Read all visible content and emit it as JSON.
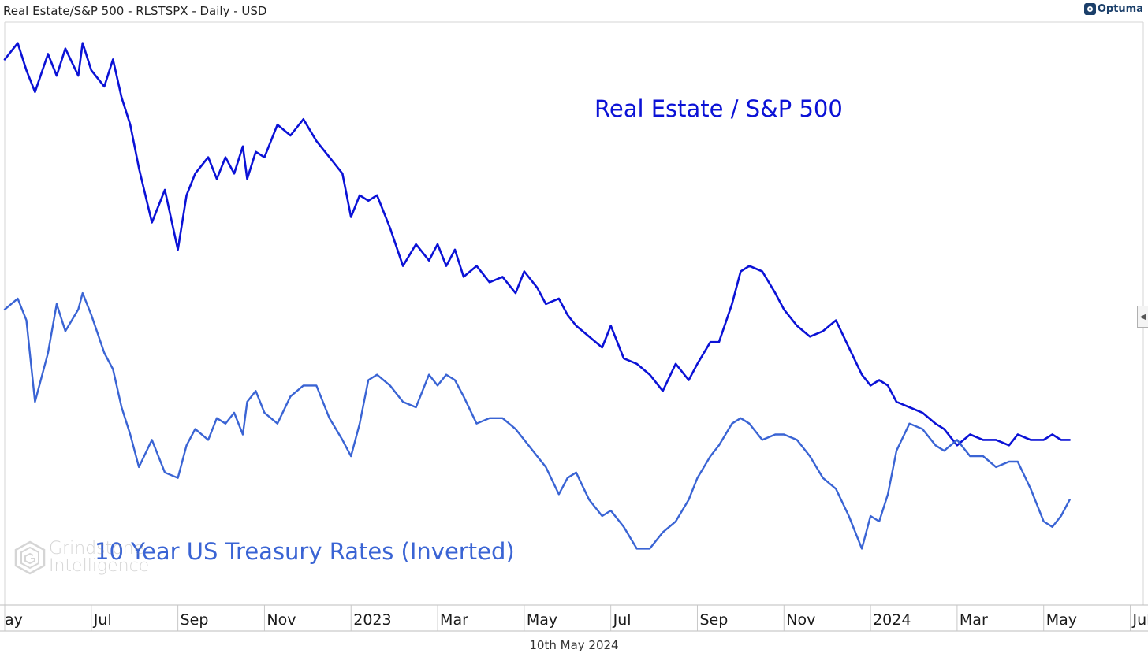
{
  "header": {
    "title": "Real Estate/S&P 500 - RLSTSPX - Daily - USD",
    "logo_text": "Optuma"
  },
  "footer": {
    "date": "10th May 2024"
  },
  "watermark": {
    "line1": "Grindstone",
    "line2": "Intelligence"
  },
  "colors": {
    "series_ratio": "#0b12d6",
    "series_rates": "#3a64d4",
    "axis": "#c8c8c8",
    "background": "#ffffff"
  },
  "chart_data": {
    "type": "line",
    "title": "Real Estate/S&P 500 - RLSTSPX - Daily - USD",
    "x_unit": "months since May 2022",
    "y_unit": "normalized index (0-100, relative scale, no y-axis shown)",
    "xlim": [
      0,
      26.3
    ],
    "ylim": [
      0,
      100
    ],
    "x_tick_labels": [
      {
        "label": "ay",
        "x": 0
      },
      {
        "label": "Jul",
        "x": 2
      },
      {
        "label": "Sep",
        "x": 4
      },
      {
        "label": "Nov",
        "x": 6
      },
      {
        "label": "2023",
        "x": 8
      },
      {
        "label": "Mar",
        "x": 10
      },
      {
        "label": "May",
        "x": 12
      },
      {
        "label": "Jul",
        "x": 14
      },
      {
        "label": "Sep",
        "x": 16
      },
      {
        "label": "Nov",
        "x": 18
      },
      {
        "label": "2024",
        "x": 20
      },
      {
        "label": "Mar",
        "x": 22
      },
      {
        "label": "May",
        "x": 24
      },
      {
        "label": "Jul",
        "x": 26
      }
    ],
    "series": [
      {
        "name": "Real Estate / S&P 500",
        "label_text": "Real Estate / S&P 500",
        "color": "#0b12d6",
        "x": [
          0,
          0.3,
          0.5,
          0.7,
          1.0,
          1.2,
          1.4,
          1.7,
          1.8,
          2.0,
          2.3,
          2.5,
          2.7,
          2.9,
          3.1,
          3.4,
          3.7,
          4.0,
          4.2,
          4.4,
          4.7,
          4.9,
          5.1,
          5.3,
          5.5,
          5.6,
          5.8,
          6.0,
          6.3,
          6.6,
          6.9,
          7.2,
          7.5,
          7.8,
          8.0,
          8.2,
          8.4,
          8.6,
          8.9,
          9.2,
          9.5,
          9.8,
          10.0,
          10.2,
          10.4,
          10.6,
          10.9,
          11.2,
          11.5,
          11.8,
          12.0,
          12.3,
          12.5,
          12.8,
          13.0,
          13.2,
          13.5,
          13.8,
          14.0,
          14.3,
          14.6,
          14.9,
          15.2,
          15.5,
          15.8,
          16.0,
          16.3,
          16.5,
          16.8,
          17.0,
          17.2,
          17.5,
          17.8,
          18.0,
          18.3,
          18.6,
          18.9,
          19.2,
          19.5,
          19.8,
          20.0,
          20.2,
          20.4,
          20.6,
          20.9,
          21.2,
          21.5,
          21.7,
          22.0,
          22.3,
          22.6,
          22.9,
          23.2,
          23.4,
          23.7,
          24.0,
          24.2,
          24.4,
          24.6
        ],
        "values": [
          94,
          97,
          92,
          88,
          95,
          91,
          96,
          91,
          97,
          92,
          89,
          94,
          87,
          82,
          74,
          64,
          70,
          59,
          69,
          73,
          76,
          72,
          76,
          73,
          78,
          72,
          77,
          76,
          82,
          80,
          83,
          79,
          76,
          73,
          65,
          69,
          68,
          69,
          63,
          56,
          60,
          57,
          60,
          56,
          59,
          54,
          56,
          53,
          54,
          51,
          55,
          52,
          49,
          50,
          47,
          45,
          43,
          41,
          45,
          39,
          38,
          36,
          33,
          38,
          35,
          38,
          42,
          42,
          49,
          55,
          56,
          55,
          51,
          48,
          45,
          43,
          44,
          46,
          41,
          36,
          34,
          35,
          34,
          31,
          30,
          29,
          27,
          26,
          23,
          25,
          24,
          24,
          23,
          25,
          24,
          24,
          25,
          24,
          24
        ]
      },
      {
        "name": "10 Year US Treasury Rates (Inverted)",
        "label_text": "10 Year US Treasury Rates (Inverted)",
        "color": "#3a64d4",
        "x": [
          0,
          0.3,
          0.5,
          0.7,
          1.0,
          1.2,
          1.4,
          1.7,
          1.8,
          2.0,
          2.3,
          2.5,
          2.7,
          2.9,
          3.1,
          3.4,
          3.7,
          4.0,
          4.2,
          4.4,
          4.7,
          4.9,
          5.1,
          5.3,
          5.5,
          5.6,
          5.8,
          6.0,
          6.3,
          6.6,
          6.9,
          7.2,
          7.5,
          7.8,
          8.0,
          8.2,
          8.4,
          8.6,
          8.9,
          9.2,
          9.5,
          9.8,
          10.0,
          10.2,
          10.4,
          10.6,
          10.9,
          11.2,
          11.5,
          11.8,
          12.0,
          12.3,
          12.5,
          12.8,
          13.0,
          13.2,
          13.5,
          13.8,
          14.0,
          14.3,
          14.6,
          14.9,
          15.2,
          15.5,
          15.8,
          16.0,
          16.3,
          16.5,
          16.8,
          17.0,
          17.2,
          17.5,
          17.8,
          18.0,
          18.3,
          18.6,
          18.9,
          19.2,
          19.5,
          19.8,
          20.0,
          20.2,
          20.4,
          20.6,
          20.9,
          21.2,
          21.5,
          21.7,
          22.0,
          22.3,
          22.6,
          22.9,
          23.2,
          23.4,
          23.7,
          24.0,
          24.2,
          24.4,
          24.6
        ],
        "values": [
          48,
          50,
          46,
          31,
          40,
          49,
          44,
          48,
          51,
          47,
          40,
          37,
          30,
          25,
          19,
          24,
          18,
          17,
          23,
          26,
          24,
          28,
          27,
          29,
          25,
          31,
          33,
          29,
          27,
          32,
          34,
          34,
          28,
          24,
          21,
          27,
          35,
          36,
          34,
          31,
          30,
          36,
          34,
          36,
          35,
          32,
          27,
          28,
          28,
          26,
          24,
          21,
          19,
          14,
          17,
          18,
          13,
          10,
          11,
          8,
          4,
          4,
          7,
          9,
          13,
          17,
          21,
          23,
          27,
          28,
          27,
          24,
          25,
          25,
          24,
          21,
          17,
          15,
          10,
          4,
          10,
          9,
          14,
          22,
          27,
          26,
          23,
          22,
          24,
          21,
          21,
          19,
          20,
          20,
          15,
          9,
          8,
          10,
          13
        ]
      }
    ]
  }
}
